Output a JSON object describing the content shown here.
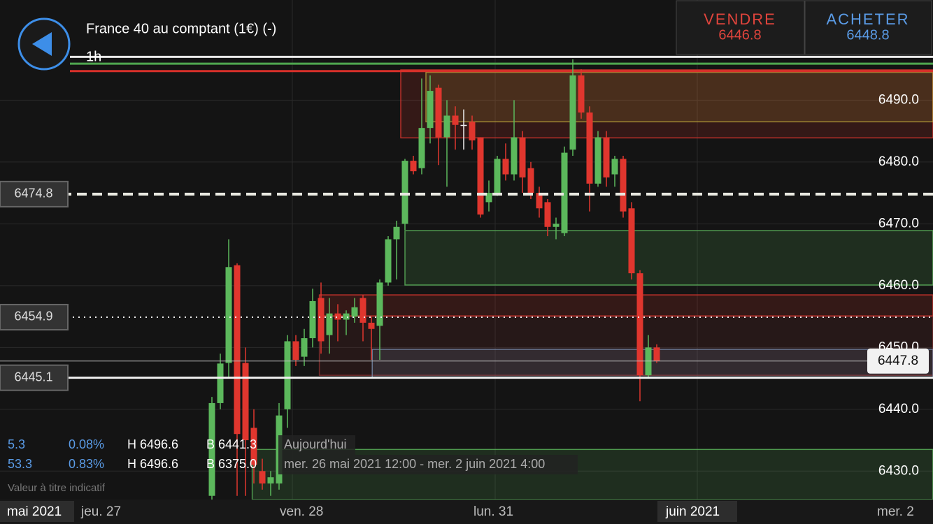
{
  "header": {
    "instrument": "France 40 au comptant (1€) (-)",
    "timeframe": "1h",
    "sell_label": "VENDRE",
    "sell_price": "6446.8",
    "buy_label": "ACHETER",
    "buy_price": "6448.8"
  },
  "stats": [
    [
      "5.3",
      "0.08%",
      "H 6496.6",
      "B 6441.3",
      "Aujourd'hui"
    ],
    [
      "53.3",
      "0.83%",
      "H 6496.6",
      "B 6375.0",
      "mer. 26 mai 2021 12:00 - mer. 2 juin 2021 4:00"
    ]
  ],
  "note": "Valeur à titre indicatif",
  "x_labels": [
    "mai 2021",
    "jeu. 27",
    "ven. 28",
    "lun. 31",
    "juin 2021",
    "mer. 2"
  ],
  "chart_data": {
    "type": "candlestick",
    "up_color": "#5cb85c",
    "down_color": "#e0362e",
    "open": [
      6426,
      6441,
      6447.5,
      6463.3,
      6447.5,
      6437,
      6430,
      6428,
      6428,
      6440,
      6451,
      6448.5,
      6451.5,
      6458,
      6452,
      6455.5,
      6454.5,
      6455,
      6458,
      6454,
      6453.5,
      6460.5,
      6467.5,
      6470,
      6480.2,
      6479,
      6485.5,
      6492,
      6484,
      6487.5,
      6486,
      6486.5,
      6484,
      6473.5,
      6475,
      6480.5,
      6478,
      6484,
      6479,
      6475,
      6473.5,
      6469.5,
      6468.5,
      6482,
      6494,
      6488,
      6476.5,
      6484,
      6478,
      6480.5,
      6472.5,
      6462,
      6445.5,
      6450
    ],
    "high": [
      6442,
      6449,
      6467.5,
      6463.6,
      6450,
      6440,
      6432,
      6430,
      6441,
      6452,
      6452,
      6453,
      6459.5,
      6460.5,
      6458,
      6457,
      6456,
      6458,
      6458.5,
      6455,
      6461,
      6468,
      6470.5,
      6480.5,
      6481,
      6493.5,
      6494,
      6492.5,
      6490,
      6489,
      6488.5,
      6487.5,
      6484,
      6477,
      6481,
      6483,
      6490,
      6485,
      6480,
      6476,
      6474,
      6471,
      6482.5,
      6496.6,
      6495,
      6489,
      6485,
      6485,
      6481,
      6481,
      6473.5,
      6462.5,
      6452,
      6450.5
    ],
    "low": [
      6425.4,
      6440,
      6445,
      6426,
      6426,
      6428,
      6427,
      6426,
      6427,
      6437,
      6447,
      6447,
      6450,
      6449,
      6449,
      6451,
      6452,
      6454,
      6451,
      6448,
      6448,
      6460,
      6461,
      6469,
      6478,
      6478,
      6483,
      6479.5,
      6476,
      6482,
      6482,
      6482,
      6471,
      6472,
      6474.5,
      6477,
      6477,
      6475,
      6474,
      6471,
      6468,
      6467.5,
      6468,
      6481,
      6487,
      6472,
      6476,
      6476,
      6476,
      6471,
      6461,
      6441.3,
      6445,
      6447.5
    ],
    "close": [
      6441,
      6447.4,
      6463,
      6436,
      6435,
      6431,
      6428,
      6429,
      6439,
      6451,
      6448,
      6451.5,
      6457.5,
      6451,
      6455.5,
      6454.5,
      6455.5,
      6456.5,
      6454,
      6453,
      6460.5,
      6467.5,
      6469.5,
      6480.2,
      6478.5,
      6485.5,
      6491.5,
      6484,
      6487.5,
      6486,
      6486,
      6483.5,
      6471.5,
      6475,
      6480.5,
      6478,
      6484,
      6477.5,
      6475,
      6472.5,
      6469.5,
      6470,
      6481.5,
      6494,
      6488,
      6476.5,
      6484,
      6477.5,
      6480.5,
      6472,
      6462,
      6445.5,
      6450,
      6447.8
    ],
    "ylim": [
      6425.4,
      6506.2
    ],
    "yticks": [
      {
        "value": 6430,
        "label": "6430.0"
      },
      {
        "value": 6440,
        "label": "6440.0"
      },
      {
        "value": 6450,
        "label": "6450.0"
      },
      {
        "value": 6460,
        "label": "6460.0"
      },
      {
        "value": 6470,
        "label": "6470.0"
      },
      {
        "value": 6480,
        "label": "6480.0"
      },
      {
        "value": 6490,
        "label": "6490.0"
      }
    ],
    "grid": true,
    "zones": [
      {
        "lo": 6483.9,
        "hi": 6494.9,
        "start": 22.5,
        "color": "#e0362e"
      },
      {
        "lo": 6486.5,
        "hi": 6494.5,
        "start": 25.5,
        "color": "#b8a03a"
      },
      {
        "lo": 6460.1,
        "hi": 6468.9,
        "start": 23,
        "color": "#5cb85c"
      },
      {
        "lo": 6455.1,
        "hi": 6458.5,
        "start": 12.8,
        "color": "#e0362e"
      },
      {
        "lo": 6445.5,
        "hi": 6455,
        "start": 12.8,
        "color": "#8a3030"
      },
      {
        "lo": 6445.1,
        "hi": 6449.7,
        "start": 19.1,
        "color": "#7a90b0"
      },
      {
        "lo": 6425.4,
        "hi": 6433.5,
        "start": 4.8,
        "color": "#5cb85c"
      }
    ],
    "levels": [
      {
        "value": 6497,
        "color": "#e8e8e8"
      },
      {
        "value": 6495.9,
        "color": "#4fa64f"
      },
      {
        "value": 6494.7,
        "color": "#d9302a"
      }
    ],
    "markers": [
      {
        "value": 6474.8,
        "style": "dashed"
      },
      {
        "value": 6454.9,
        "style": "dotted"
      },
      {
        "value": 6445.1,
        "style": "solid"
      },
      {
        "value": 6447.8,
        "style": "current"
      }
    ]
  }
}
